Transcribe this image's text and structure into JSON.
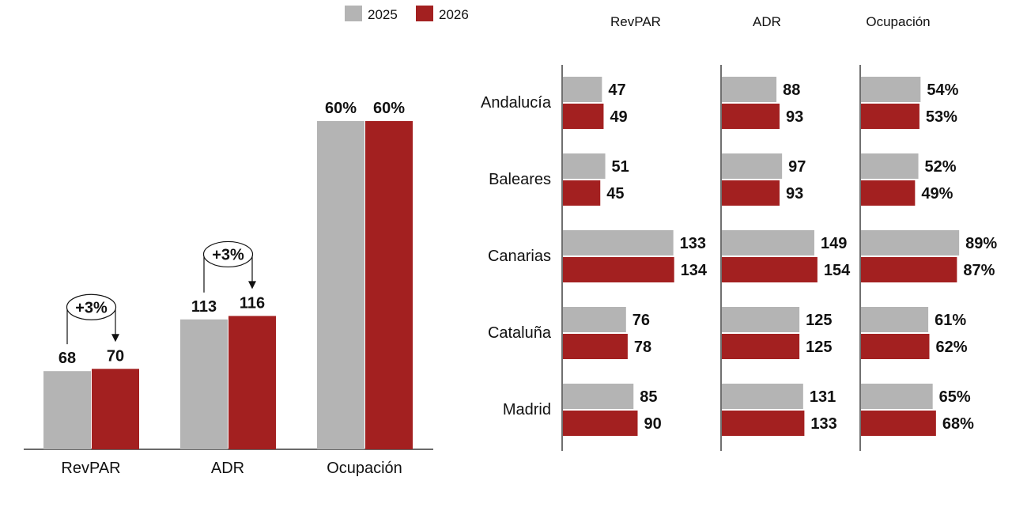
{
  "legend": {
    "items": [
      {
        "label": "2025",
        "color": "#b4b4b4"
      },
      {
        "label": "2026",
        "color": "#a32020"
      }
    ]
  },
  "chart_data": [
    {
      "type": "bar",
      "title": "",
      "categories": [
        "RevPAR",
        "ADR",
        "Ocupación"
      ],
      "series": [
        {
          "name": "2025",
          "values": [
            68,
            113,
            60
          ],
          "labels": [
            "68",
            "113",
            "60%"
          ]
        },
        {
          "name": "2026",
          "values": [
            70,
            116,
            60
          ],
          "labels": [
            "70",
            "116",
            "60%"
          ]
        }
      ],
      "annotations": [
        {
          "category": "RevPAR",
          "text": "+3%"
        },
        {
          "category": "ADR",
          "text": "+3%"
        }
      ]
    },
    {
      "type": "bar",
      "orientation": "horizontal",
      "regions": [
        "Andalucía",
        "Baleares",
        "Canarias",
        "Cataluña",
        "Madrid"
      ],
      "panels": [
        {
          "metric": "RevPAR",
          "series": [
            {
              "name": "2025",
              "values": [
                47,
                51,
                133,
                76,
                85
              ],
              "labels": [
                "47",
                "51",
                "133",
                "76",
                "85"
              ]
            },
            {
              "name": "2026",
              "values": [
                49,
                45,
                134,
                78,
                90
              ],
              "labels": [
                "49",
                "45",
                "134",
                "78",
                "90"
              ]
            }
          ]
        },
        {
          "metric": "ADR",
          "series": [
            {
              "name": "2025",
              "values": [
                88,
                97,
                149,
                125,
                131
              ],
              "labels": [
                "88",
                "97",
                "149",
                "125",
                "131"
              ]
            },
            {
              "name": "2026",
              "values": [
                93,
                93,
                154,
                125,
                133
              ],
              "labels": [
                "93",
                "93",
                "154",
                "125",
                "133"
              ]
            }
          ]
        },
        {
          "metric": "Ocupación",
          "series": [
            {
              "name": "2025",
              "values": [
                54,
                52,
                89,
                61,
                65
              ],
              "labels": [
                "54%",
                "52%",
                "89%",
                "61%",
                "65%"
              ]
            },
            {
              "name": "2026",
              "values": [
                53,
                49,
                87,
                62,
                68
              ],
              "labels": [
                "53%",
                "49%",
                "87%",
                "62%",
                "68%"
              ]
            }
          ]
        }
      ]
    }
  ]
}
